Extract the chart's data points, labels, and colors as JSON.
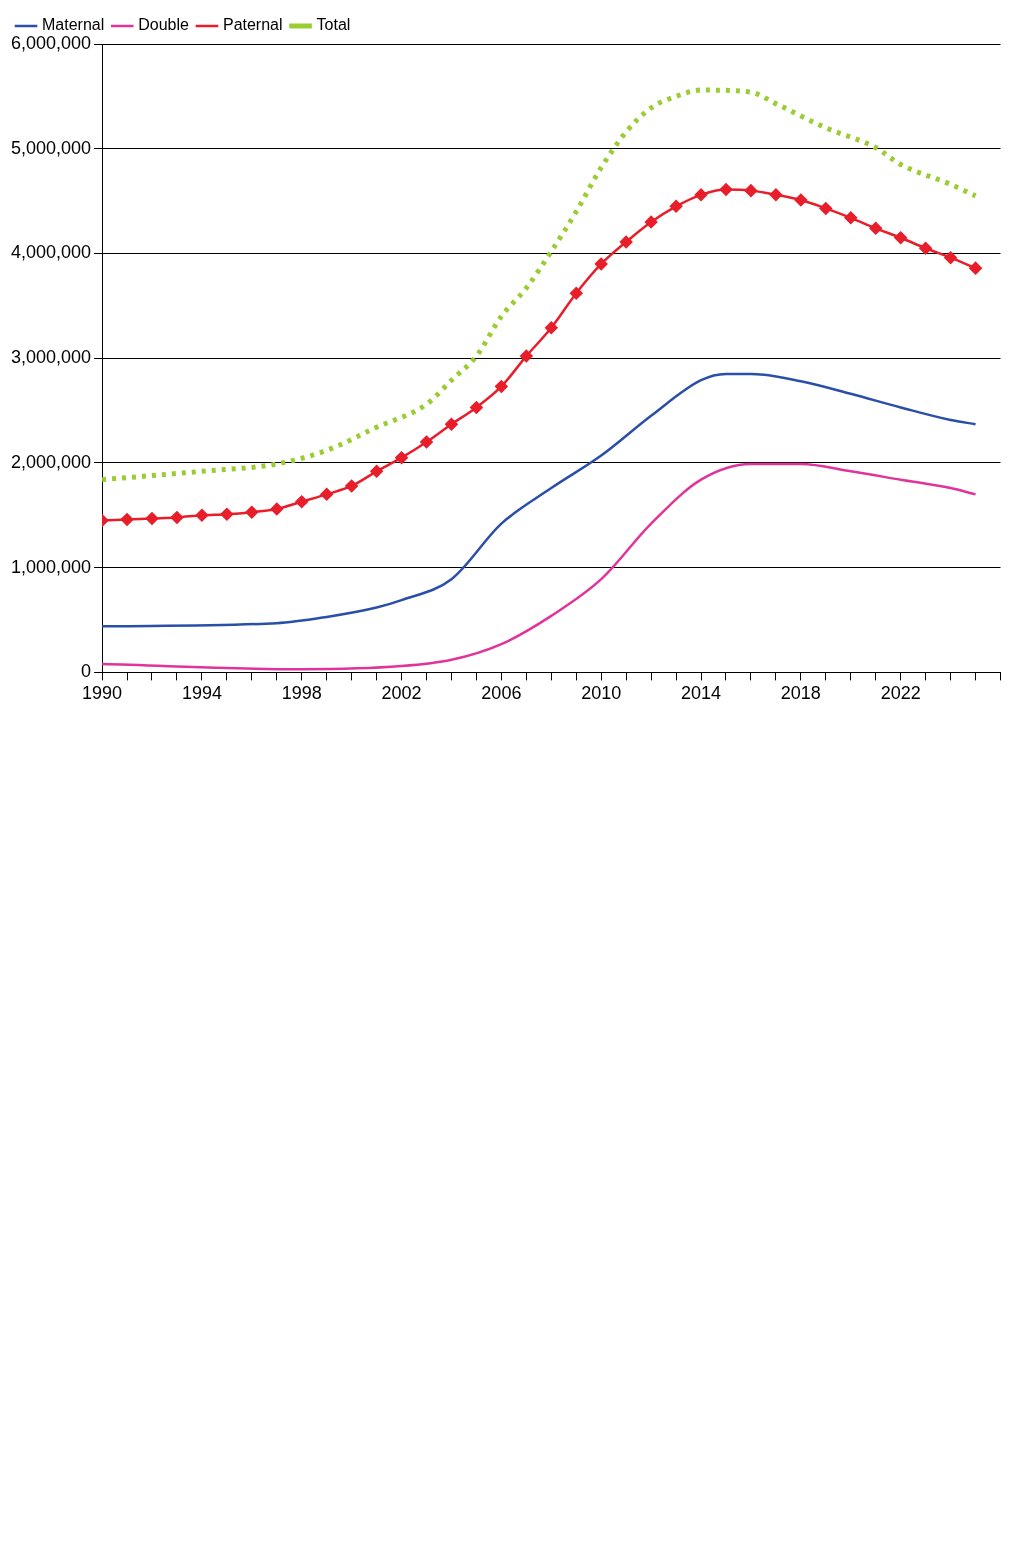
{
  "chart_data": {
    "type": "line",
    "xlim": [
      1990,
      2026
    ],
    "ylim": [
      0,
      6000000
    ],
    "xticks": [
      1990,
      {
        "value": 1991,
        "label": null
      },
      {
        "value": 1992,
        "label": null
      },
      {
        "value": 1993,
        "label": null
      },
      1994,
      {
        "value": 1995,
        "label": null
      },
      {
        "value": 1996,
        "label": null
      },
      {
        "value": 1997,
        "label": null
      },
      1998,
      {
        "value": 1999,
        "label": null
      },
      {
        "value": 2000,
        "label": null
      },
      {
        "value": 2001,
        "label": null
      },
      2002,
      {
        "value": 2003,
        "label": null
      },
      {
        "value": 2004,
        "label": null
      },
      {
        "value": 2005,
        "label": null
      },
      2006,
      {
        "value": 2007,
        "label": null
      },
      {
        "value": 2008,
        "label": null
      },
      {
        "value": 2009,
        "label": null
      },
      2010,
      {
        "value": 2011,
        "label": null
      },
      {
        "value": 2012,
        "label": null
      },
      {
        "value": 2013,
        "label": null
      },
      2014,
      {
        "value": 2015,
        "label": null
      },
      {
        "value": 2016,
        "label": null
      },
      {
        "value": 2017,
        "label": null
      },
      2018,
      {
        "value": 2019,
        "label": null
      },
      {
        "value": 2020,
        "label": null
      },
      {
        "value": 2021,
        "label": null
      },
      2022,
      {
        "value": 2023,
        "label": null
      },
      {
        "value": 2024,
        "label": null
      },
      {
        "value": 2025,
        "label": null
      },
      {
        "value": 2026,
        "label": null
      }
    ],
    "yticks": [
      {
        "value": 0,
        "label": "0"
      },
      {
        "value": 1000000,
        "label": "1,000,000"
      },
      {
        "value": 2000000,
        "label": "2,000,000"
      },
      {
        "value": 3000000,
        "label": "3,000,000"
      },
      {
        "value": 4000000,
        "label": "4,000,000"
      },
      {
        "value": 5000000,
        "label": "5,000,000"
      },
      {
        "value": 6000000,
        "label": "6,000,000"
      }
    ],
    "grid": "y",
    "legend": "top left",
    "series": [
      {
        "name": "Maternal",
        "color": "#2a4fa8",
        "marker": "none",
        "line_style": "solid",
        "x": [
          1990,
          1997,
          1999,
          2001,
          2002,
          2004,
          2006,
          2008,
          2010,
          2012,
          2014,
          2015,
          2016,
          2018,
          2020,
          2022,
          2024,
          2025
        ],
        "values": [
          440000,
          470000,
          530000,
          620000,
          690000,
          890000,
          1420000,
          1760000,
          2070000,
          2450000,
          2790000,
          2850000,
          2850000,
          2780000,
          2660000,
          2530000,
          2410000,
          2370000
        ]
      },
      {
        "name": "Double",
        "color": "#e0349a",
        "marker": "none",
        "line_style": "solid",
        "x": [
          1990,
          1998,
          2002,
          2004,
          2006,
          2008,
          2010,
          2012,
          2014,
          2016,
          2018,
          2020,
          2022,
          2024,
          2025
        ],
        "values": [
          80000,
          30000,
          60000,
          120000,
          270000,
          540000,
          890000,
          1420000,
          1840000,
          1990000,
          1990000,
          1920000,
          1840000,
          1760000,
          1700000
        ]
      },
      {
        "name": "Paternal",
        "color": "#e81e2b",
        "marker": "diamond",
        "line_style": "solid",
        "x": [
          1990,
          1991,
          1992,
          1993,
          1994,
          1995,
          1996,
          1997,
          1998,
          1999,
          2000,
          2001,
          2002,
          2003,
          2004,
          2005,
          2006,
          2007,
          2008,
          2009,
          2010,
          2011,
          2012,
          2013,
          2014,
          2015,
          2016,
          2017,
          2018,
          2019,
          2020,
          2021,
          2022,
          2023,
          2024,
          2025
        ],
        "values": [
          1450000,
          1460000,
          1470000,
          1480000,
          1500000,
          1510000,
          1530000,
          1560000,
          1630000,
          1700000,
          1780000,
          1920000,
          2050000,
          2200000,
          2370000,
          2530000,
          2730000,
          3020000,
          3290000,
          3620000,
          3900000,
          4110000,
          4300000,
          4450000,
          4560000,
          4610000,
          4600000,
          4560000,
          4510000,
          4430000,
          4340000,
          4240000,
          4150000,
          4050000,
          3960000,
          3860000
        ]
      },
      {
        "name": "Total",
        "color": "#9acd32",
        "marker": "none",
        "line_style": "dotted",
        "x": [
          1990,
          1994,
          1997,
          1999,
          2001,
          2003,
          2004,
          2005,
          2006,
          2007,
          2008,
          2009,
          2010,
          2011,
          2012,
          2013,
          2014,
          2016,
          2017,
          2019,
          2021,
          2022,
          2024,
          2025
        ],
        "values": [
          1840000,
          1920000,
          1990000,
          2120000,
          2340000,
          2560000,
          2790000,
          3020000,
          3400000,
          3670000,
          4020000,
          4400000,
          4820000,
          5160000,
          5390000,
          5500000,
          5560000,
          5540000,
          5430000,
          5200000,
          5010000,
          4850000,
          4660000,
          4550000
        ]
      }
    ]
  }
}
